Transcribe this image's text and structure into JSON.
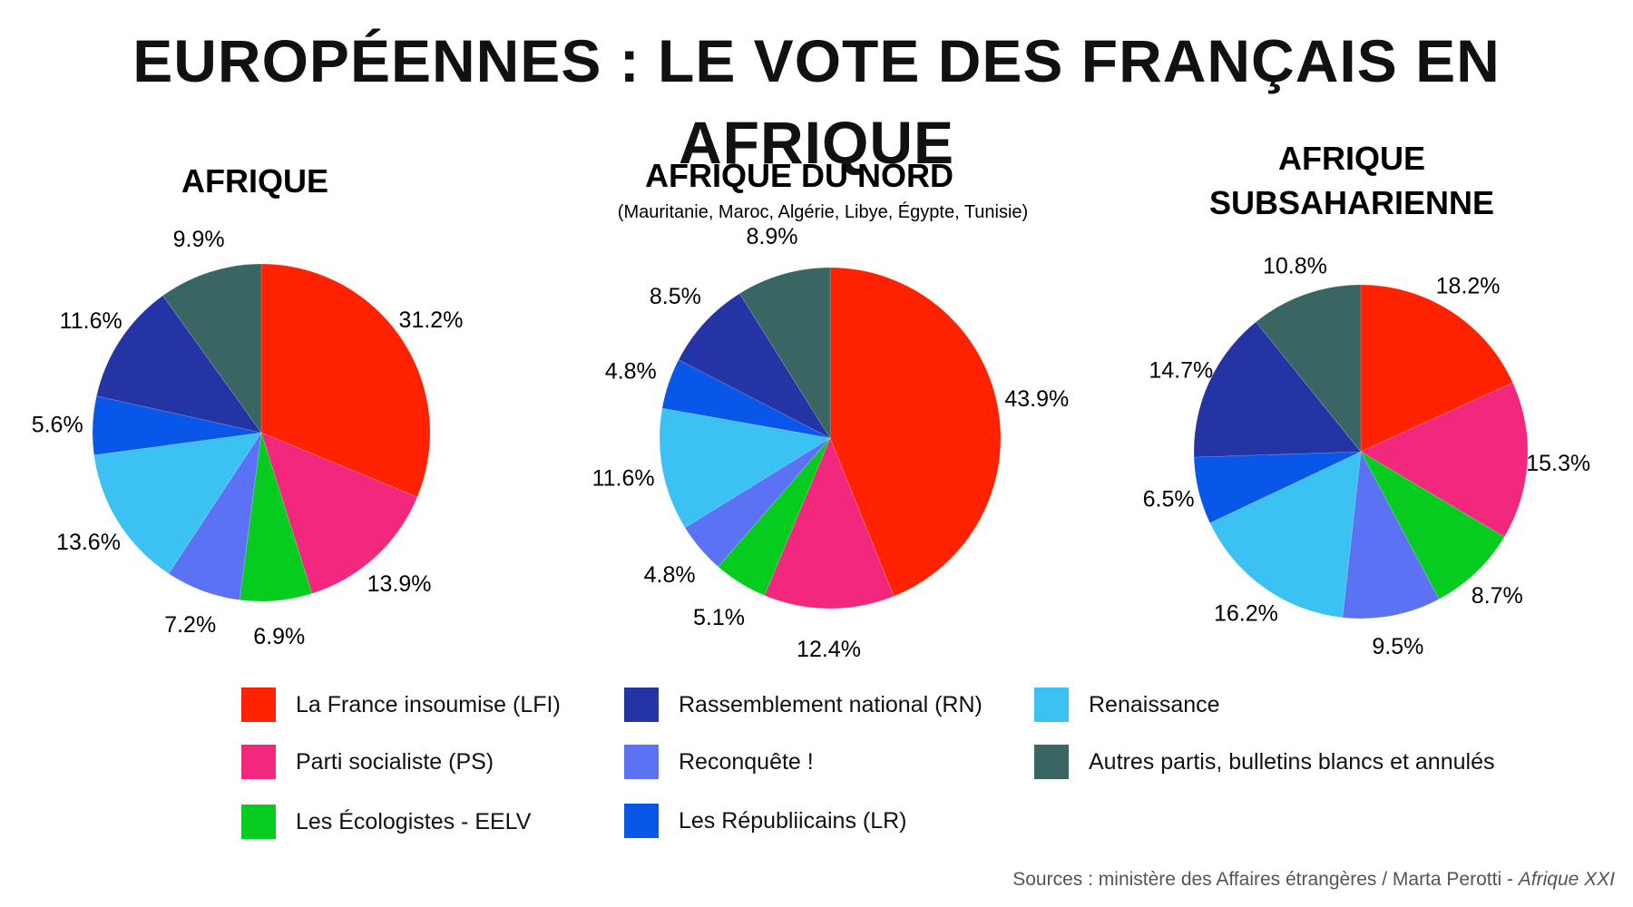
{
  "title": "EUROPÉENNES : LE VOTE DES FRANÇAIS EN AFRIQUE",
  "parties": [
    {
      "key": "lfi",
      "name": "La France insoumise (LFI)",
      "color": "#ff2200"
    },
    {
      "key": "ps",
      "name": "Parti socialiste (PS)",
      "color": "#f2287e"
    },
    {
      "key": "eelv",
      "name": "Les Écologistes - EELV",
      "color": "#05cc1e"
    },
    {
      "key": "reconquete",
      "name": "Reconquête !",
      "color": "#5b72f5"
    },
    {
      "key": "renaissance",
      "name": "Renaissance",
      "color": "#3cc2f2"
    },
    {
      "key": "lr",
      "name": "Les Républiicains (LR)",
      "color": "#0857e8"
    },
    {
      "key": "rn",
      "name": "Rassemblement national (RN)",
      "color": "#2534a5"
    },
    {
      "key": "autres",
      "name": "Autres partis, bulletins blancs et annulés",
      "color": "#396563"
    }
  ],
  "chart_data": [
    {
      "type": "pie",
      "title": "AFRIQUE",
      "subtitle": "",
      "labels": [
        "La France insoumise (LFI)",
        "Parti socialiste (PS)",
        "Les Écologistes - EELV",
        "Reconquête !",
        "Renaissance",
        "Les Républiicains (LR)",
        "Rassemblement national (RN)",
        "Autres partis, bulletins blancs et annulés"
      ],
      "values": [
        31.2,
        13.9,
        6.9,
        7.2,
        13.6,
        5.6,
        11.6,
        9.9
      ],
      "value_labels": [
        "31.2%",
        "13.9%",
        "6.9%",
        "7.2%",
        "13.6%",
        "5.6%",
        "11.6%",
        "9.9%"
      ]
    },
    {
      "type": "pie",
      "title": "AFRIQUE DU NORD",
      "subtitle": "(Mauritanie, Maroc, Algérie, Libye, Égypte, Tunisie)",
      "labels": [
        "La France insoumise (LFI)",
        "Parti socialiste (PS)",
        "Les Écologistes - EELV",
        "Reconquête !",
        "Renaissance",
        "Les Républiicains (LR)",
        "Rassemblement national (RN)",
        "Autres partis, bulletins blancs et annulés"
      ],
      "values": [
        43.9,
        12.4,
        5.1,
        4.8,
        11.6,
        4.8,
        8.5,
        8.9
      ],
      "value_labels": [
        "43.9%",
        "12.4%",
        "5.1%",
        "4.8%",
        "11.6%",
        "4.8%",
        "8.5%",
        "8.9%"
      ]
    },
    {
      "type": "pie",
      "title": "AFRIQUE SUBSAHARIENNE",
      "title_lines": [
        "AFRIQUE",
        "SUBSAHARIENNE"
      ],
      "subtitle": "",
      "labels": [
        "La France insoumise (LFI)",
        "Parti socialiste (PS)",
        "Les Écologistes - EELV",
        "Reconquête !",
        "Renaissance",
        "Les Républiicains (LR)",
        "Rassemblement national (RN)",
        "Autres partis, bulletins blancs et annulés"
      ],
      "values": [
        18.2,
        15.3,
        8.7,
        9.5,
        16.2,
        6.5,
        14.7,
        10.8
      ],
      "value_labels": [
        "18.2%",
        "15.3%",
        "8.7%",
        "9.5%",
        "16.2%",
        "6.5%",
        "14.7%",
        "10.8%"
      ]
    }
  ],
  "source": {
    "text": "Sources : ministère des Affaires étrangères / Marta Perotti - ",
    "publication": "Afrique XXI"
  }
}
